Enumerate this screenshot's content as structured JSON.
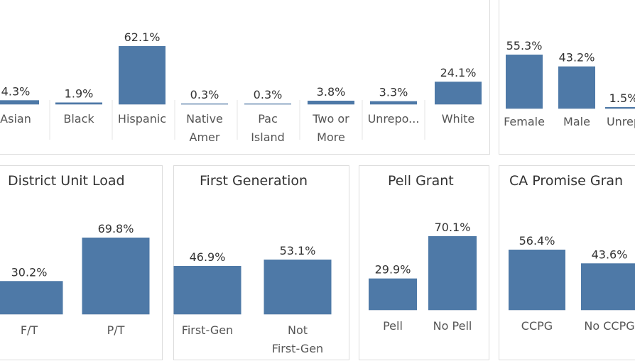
{
  "chart_data": [
    {
      "id": "ethnicity",
      "type": "bar",
      "title": "",
      "categories": [
        [
          "Asian"
        ],
        [
          "Black"
        ],
        [
          "Hispanic"
        ],
        [
          "Native",
          "Amer"
        ],
        [
          "Pac",
          "Island"
        ],
        [
          "Two or",
          "More"
        ],
        [
          "Unrepo..."
        ],
        [
          "White"
        ]
      ],
      "values": [
        4.3,
        1.9,
        62.1,
        0.3,
        0.3,
        3.8,
        3.3,
        24.1
      ],
      "labels": [
        "4.3%",
        "1.9%",
        "62.1%",
        "0.3%",
        "0.3%",
        "3.8%",
        "3.3%",
        "24.1%"
      ],
      "ylim": [
        0,
        62.1
      ]
    },
    {
      "id": "gender",
      "type": "bar",
      "title": "",
      "categories": [
        [
          "Female"
        ],
        [
          "Male"
        ],
        [
          "Unrep"
        ]
      ],
      "values": [
        55.3,
        43.2,
        1.5
      ],
      "labels": [
        "55.3%",
        "43.2%",
        "1.5%"
      ],
      "ylim": [
        0,
        55.3
      ]
    },
    {
      "id": "unit-load",
      "type": "bar",
      "title": "District Unit Load",
      "categories": [
        [
          "F/T"
        ],
        [
          "P/T"
        ]
      ],
      "values": [
        30.2,
        69.8
      ],
      "labels": [
        "30.2%",
        "69.8%"
      ],
      "ylim": [
        0,
        69.8
      ]
    },
    {
      "id": "first-gen",
      "type": "bar",
      "title": "First Generation",
      "categories": [
        [
          "First-Gen"
        ],
        [
          "Not",
          "First-Gen"
        ]
      ],
      "values": [
        46.9,
        53.1
      ],
      "labels": [
        "46.9%",
        "53.1%"
      ],
      "ylim": [
        0,
        53.1
      ]
    },
    {
      "id": "pell",
      "type": "bar",
      "title": "Pell Grant",
      "categories": [
        [
          "Pell"
        ],
        [
          "No Pell"
        ]
      ],
      "values": [
        29.9,
        70.1
      ],
      "labels": [
        "29.9%",
        "70.1%"
      ],
      "ylim": [
        0,
        70.1
      ]
    },
    {
      "id": "ca-promise",
      "type": "bar",
      "title": "CA Promise Gran",
      "categories": [
        [
          "CCPG"
        ],
        [
          "No CCPG"
        ]
      ],
      "values": [
        56.4,
        43.6
      ],
      "labels": [
        "56.4%",
        "43.6%"
      ],
      "ylim": [
        0,
        56.4
      ]
    }
  ],
  "colors": {
    "bar": "#4e79a7",
    "baseline": "#cfd8e3",
    "border": "#dcdcdc"
  }
}
